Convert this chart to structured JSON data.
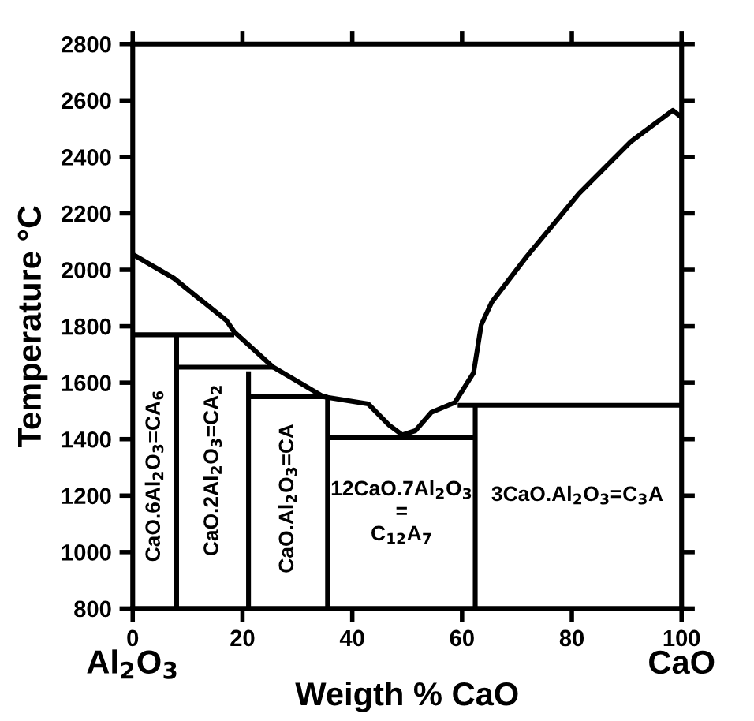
{
  "chart_data": {
    "type": "line",
    "xlabel": "Weigth % CaO",
    "ylabel": "Temperature °C",
    "xlim": [
      0,
      100
    ],
    "ylim": [
      800,
      2800
    ],
    "xticks": [
      0,
      20,
      40,
      60,
      80,
      100
    ],
    "yticks": [
      800,
      1000,
      1200,
      1400,
      1600,
      1800,
      2000,
      2200,
      2400,
      2600,
      2800
    ],
    "grid": false,
    "legend": false,
    "marker": "none",
    "line_style": "solid",
    "series": [
      {
        "color": "#000000",
        "x": [
          0,
          7.5,
          17.1,
          18.5,
          25.6,
          34.8,
          42.9,
          46.7,
          49.1,
          51.5,
          54.4,
          58.7,
          62.1,
          63.5,
          65.4,
          71.7,
          81.3,
          90.8,
          98.4,
          100
        ],
        "values": [
          2055,
          1970,
          1820,
          1780,
          1655,
          1550,
          1525,
          1450,
          1415,
          1430,
          1495,
          1530,
          1635,
          1805,
          1885,
          2045,
          2270,
          2455,
          2565,
          2540
        ]
      },
      {
        "color": "#000000",
        "x": [
          0,
          18.5
        ],
        "values": [
          1770,
          1770
        ]
      },
      {
        "color": "#000000",
        "x": [
          8,
          8
        ],
        "values": [
          800,
          1770
        ]
      },
      {
        "color": "#000000",
        "x": [
          8,
          25.6
        ],
        "values": [
          1655,
          1655
        ]
      },
      {
        "color": "#000000",
        "x": [
          21.1,
          21.1
        ],
        "values": [
          800,
          1640
        ]
      },
      {
        "color": "#000000",
        "x": [
          21.1,
          35.5
        ],
        "values": [
          1550,
          1550
        ]
      },
      {
        "color": "#000000",
        "x": [
          35.5,
          35.5
        ],
        "values": [
          800,
          1550
        ]
      },
      {
        "color": "#000000",
        "x": [
          35.5,
          62.4
        ],
        "values": [
          1405,
          1405
        ]
      },
      {
        "color": "#000000",
        "x": [
          62.4,
          62.4
        ],
        "values": [
          800,
          1520
        ]
      },
      {
        "color": "#000000",
        "x": [
          59.2,
          100
        ],
        "values": [
          1520,
          1520
        ]
      }
    ],
    "annotations": [
      "CaO.6Al$_{2}$O$_{3}$=CA$_{6}$",
      "CaO.2Al$_{2}$O$_{3}$=CA$_{2}$",
      "CaO.Al$_{2}$O$_{3}$=CA",
      "12CaO.7Al$_{2}$O$_{3}$\n=\nC$_{12}$A$_{7}$",
      "3CaO.Al$_{2}$O$_{3}$=C$_{3}$A",
      "Al$_{2}$O$_{3}$",
      "CaO"
    ]
  }
}
